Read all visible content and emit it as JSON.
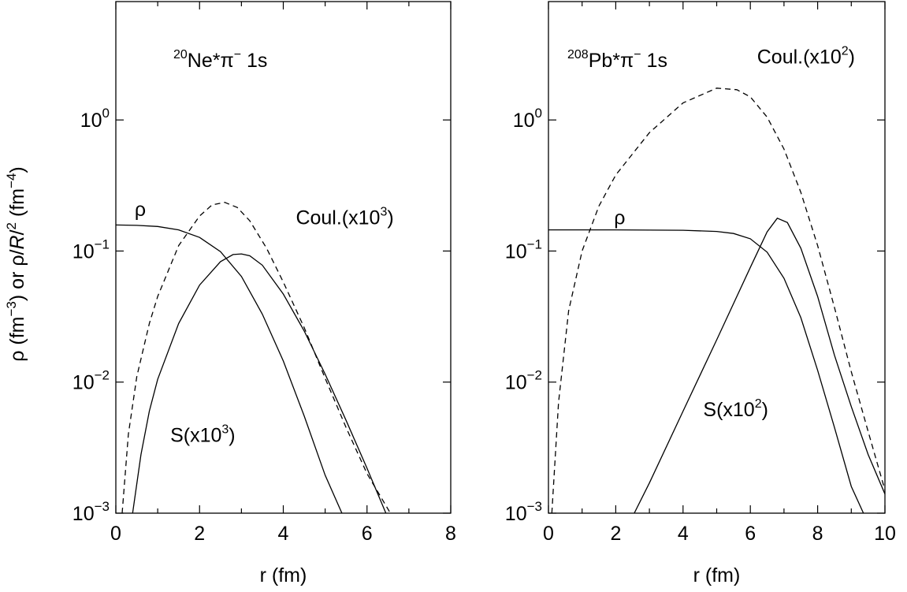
{
  "y_label": "ρ (fm⁻³) or ρ/R/² (fm⁻⁴)",
  "chart_data": [
    {
      "type": "line",
      "title_mass": "20",
      "title_main": "Ne*π",
      "title_sup": "−",
      "title_tail": " 1s",
      "xlabel": "r (fm)",
      "ylabel": "ρ (fm⁻³) or ρ/R/² (fm⁻⁴)",
      "yscale": "log",
      "xlim": [
        0,
        8
      ],
      "ylim": [
        0.001,
        8
      ],
      "xticks": [
        0,
        2,
        4,
        6,
        8
      ],
      "yticks": [
        {
          "value": 1,
          "base": "10",
          "exp": "0"
        },
        {
          "value": 0.1,
          "base": "10",
          "exp": "−1"
        },
        {
          "value": 0.01,
          "base": "10",
          "exp": "−2"
        },
        {
          "value": 0.001,
          "base": "10",
          "exp": "−3"
        }
      ],
      "series": [
        {
          "label": "ρ",
          "style": "solid",
          "x": [
            0,
            0.5,
            1.0,
            1.5,
            2.0,
            2.5,
            3.0,
            3.5,
            4.0,
            4.5,
            5.0,
            5.4
          ],
          "y": [
            0.158,
            0.157,
            0.154,
            0.145,
            0.127,
            0.099,
            0.064,
            0.033,
            0.0145,
            0.0055,
            0.00195,
            0.001
          ]
        },
        {
          "label": "Coul.(x10³)",
          "style": "dashed",
          "x": [
            0.15,
            0.3,
            0.5,
            0.8,
            1.0,
            1.5,
            2.0,
            2.3,
            2.6,
            2.9,
            3.2,
            3.6,
            4.0,
            4.5,
            5.0,
            5.5,
            6.0,
            6.6
          ],
          "y": [
            0.001,
            0.004,
            0.011,
            0.028,
            0.045,
            0.11,
            0.185,
            0.225,
            0.235,
            0.215,
            0.17,
            0.105,
            0.058,
            0.026,
            0.0107,
            0.0045,
            0.002,
            0.00095
          ]
        },
        {
          "label": "S(x10³)",
          "style": "solid",
          "x": [
            0.4,
            0.6,
            0.8,
            1.0,
            1.5,
            2.0,
            2.5,
            2.8,
            3.0,
            3.2,
            3.5,
            4.0,
            4.5,
            5.0,
            5.5,
            6.0,
            6.45
          ],
          "y": [
            0.001,
            0.0028,
            0.006,
            0.0105,
            0.028,
            0.055,
            0.083,
            0.094,
            0.095,
            0.092,
            0.078,
            0.047,
            0.0245,
            0.0115,
            0.0051,
            0.0022,
            0.001
          ]
        }
      ],
      "annotations": [
        {
          "text": "ρ",
          "x": 0.45,
          "y": 0.185
        },
        {
          "text": "Coul.(x10",
          "sup": "3",
          "suffix": ")",
          "x": 4.3,
          "y": 0.16
        },
        {
          "text": "S(x10",
          "sup": "3",
          "suffix": ")",
          "x": 1.3,
          "y": 0.0035
        }
      ]
    },
    {
      "type": "line",
      "title_mass": "208",
      "title_main": "Pb*π",
      "title_sup": "−",
      "title_tail": " 1s",
      "xlabel": "r (fm)",
      "ylabel": "",
      "yscale": "log",
      "xlim": [
        0,
        10
      ],
      "ylim": [
        0.001,
        8
      ],
      "xticks": [
        0,
        2,
        4,
        6,
        8,
        10
      ],
      "yticks": [
        {
          "value": 1,
          "base": "10",
          "exp": "0"
        },
        {
          "value": 0.1,
          "base": "10",
          "exp": "−1"
        },
        {
          "value": 0.01,
          "base": "10",
          "exp": "−2"
        },
        {
          "value": 0.001,
          "base": "10",
          "exp": "−3"
        }
      ],
      "series": [
        {
          "label": "ρ",
          "style": "solid",
          "x": [
            0,
            2,
            4,
            5,
            5.5,
            6.0,
            6.5,
            7.0,
            7.5,
            8.0,
            8.5,
            9.0,
            9.4
          ],
          "y": [
            0.145,
            0.145,
            0.144,
            0.141,
            0.136,
            0.124,
            0.098,
            0.062,
            0.031,
            0.0123,
            0.0045,
            0.0016,
            0.00095
          ]
        },
        {
          "label": "Coul.(x10²)",
          "style": "dashed",
          "x": [
            0.1,
            0.3,
            0.6,
            1.0,
            1.5,
            2.0,
            3.0,
            4.0,
            5.0,
            5.6,
            6.0,
            6.5,
            7.0,
            7.5,
            8.0,
            8.5,
            9.0,
            9.5,
            10.0
          ],
          "y": [
            0.001,
            0.007,
            0.035,
            0.1,
            0.22,
            0.38,
            0.8,
            1.35,
            1.75,
            1.7,
            1.5,
            1.05,
            0.6,
            0.28,
            0.11,
            0.037,
            0.012,
            0.0042,
            0.0015
          ]
        },
        {
          "label": "S(x10²)",
          "style": "solid",
          "x": [
            2.55,
            3.0,
            4.0,
            5.0,
            6.0,
            6.5,
            6.8,
            7.1,
            7.5,
            8.0,
            8.5,
            9.0,
            9.5,
            10.0
          ],
          "y": [
            0.001,
            0.0017,
            0.006,
            0.021,
            0.075,
            0.14,
            0.178,
            0.165,
            0.105,
            0.045,
            0.016,
            0.0065,
            0.0028,
            0.0014
          ]
        }
      ],
      "annotations": [
        {
          "text": "ρ",
          "x": 1.95,
          "y": 0.16
        },
        {
          "text": "Coul.(x10",
          "sup": "2",
          "suffix": ")",
          "x": 6.2,
          "y": 2.7
        },
        {
          "text": "S(x10",
          "sup": "2",
          "suffix": ")",
          "x": 4.6,
          "y": 0.0055
        }
      ]
    }
  ]
}
